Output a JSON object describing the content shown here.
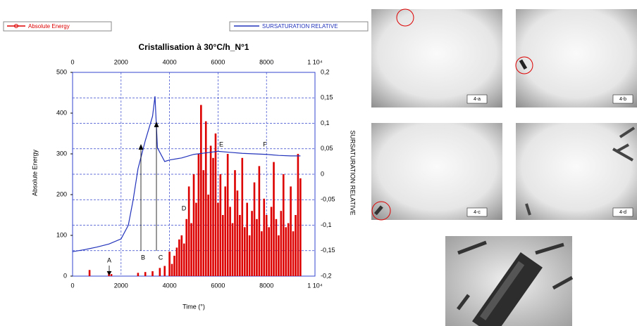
{
  "chart_data": {
    "type": "bar",
    "title": "Cristallisation à 30°C/h_N°1",
    "x_label": "Time (°)",
    "y_label": "Absolute Energy",
    "y2_label": "SURSATURATION RELATIVE",
    "xlim": [
      0,
      10000
    ],
    "xticks": [
      0,
      2000,
      4000,
      6000,
      8000,
      {
        "value": 10000,
        "label": "1 10⁴"
      }
    ],
    "ylim": [
      0,
      500
    ],
    "yticks": [
      0,
      100,
      200,
      300,
      400,
      500
    ],
    "y2lim": [
      -0.2,
      0.2
    ],
    "y2ticks": [
      {
        "value": -0.2,
        "label": "-0,2"
      },
      {
        "value": -0.15,
        "label": "-0,15"
      },
      {
        "value": -0.1,
        "label": "-0,1"
      },
      {
        "value": -0.05,
        "label": "-0,05"
      },
      0,
      {
        "value": 0.05,
        "label": "0,05"
      },
      {
        "value": 0.1,
        "label": "0,1"
      },
      {
        "value": 0.15,
        "label": "0,15"
      },
      {
        "value": 0.2,
        "label": "0,2"
      }
    ],
    "grid": true,
    "annotations": [
      "A",
      "B",
      "C",
      "D",
      "E",
      "F"
    ],
    "series": [
      {
        "name": "Absolute Energy",
        "color": "#dd0000",
        "type": "bar",
        "x": [
          700,
          1500,
          1600,
          2700,
          3000,
          3300,
          3600,
          3800,
          4000,
          4100,
          4200,
          4300,
          4400,
          4500,
          4600,
          4700,
          4800,
          4900,
          5000,
          5100,
          5200,
          5300,
          5400,
          5500,
          5600,
          5700,
          5800,
          5900,
          6000,
          6100,
          6200,
          6300,
          6400,
          6500,
          6600,
          6700,
          6800,
          6900,
          7000,
          7100,
          7200,
          7300,
          7400,
          7500,
          7600,
          7700,
          7800,
          7900,
          8000,
          8100,
          8200,
          8300,
          8400,
          8500,
          8600,
          8700,
          8800,
          8900,
          9000,
          9100,
          9200,
          9300,
          9400
        ],
        "values": [
          15,
          10,
          5,
          8,
          10,
          12,
          20,
          25,
          60,
          30,
          50,
          70,
          90,
          100,
          80,
          140,
          220,
          130,
          250,
          180,
          300,
          420,
          260,
          380,
          200,
          320,
          290,
          350,
          180,
          250,
          150,
          220,
          300,
          170,
          130,
          260,
          210,
          150,
          290,
          120,
          180,
          100,
          160,
          230,
          140,
          270,
          110,
          190,
          150,
          120,
          170,
          280,
          140,
          100,
          160,
          250,
          120,
          130,
          220,
          110,
          150,
          300,
          240
        ]
      },
      {
        "name": "SURSATURATION RELATIVE",
        "color": "#2233bb",
        "type": "line",
        "axis": "y2",
        "x": [
          0,
          500,
          1000,
          1500,
          2000,
          2300,
          2500,
          2700,
          3000,
          3300,
          3400,
          3500,
          3800,
          4000,
          4500,
          5000,
          5500,
          6000,
          6500,
          7000,
          7500,
          8000,
          8500,
          9000,
          9400
        ],
        "values": [
          -0.152,
          -0.148,
          -0.143,
          -0.137,
          -0.127,
          -0.1,
          -0.05,
          0.011,
          0.066,
          0.114,
          0.153,
          0.052,
          0.025,
          0.028,
          0.032,
          0.039,
          0.042,
          0.045,
          0.043,
          0.041,
          0.04,
          0.039,
          0.037,
          0.036,
          0.036
        ]
      }
    ]
  },
  "panels": {
    "labels": [
      "4-a",
      "4-b",
      "4-c",
      "4-d"
    ]
  }
}
